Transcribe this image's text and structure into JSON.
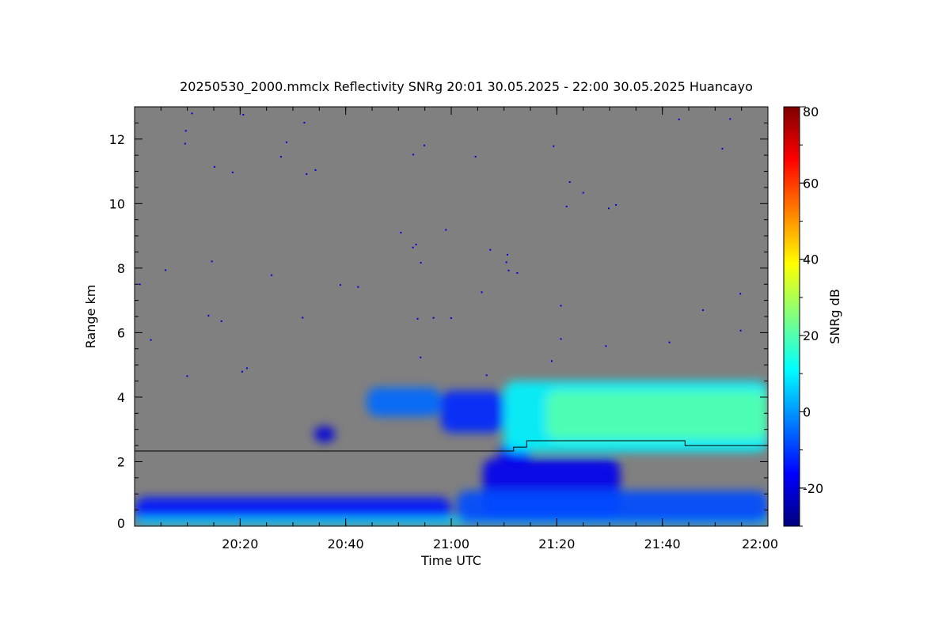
{
  "chart_data": {
    "type": "heatmap",
    "title": "20250530_2000.mmclx Reflectivity SNRg   20:01 30.05.2025 - 22:00 30.05.2025 Huancayo",
    "xlabel": "Time UTC",
    "ylabel": "Range km",
    "colorbar_label": "SNRg dB",
    "x_range_minutes": [
      0,
      120
    ],
    "x_ticks": [
      {
        "t": 20,
        "label": "20:20"
      },
      {
        "t": 40,
        "label": "20:40"
      },
      {
        "t": 60,
        "label": "21:00"
      },
      {
        "t": 80,
        "label": "21:20"
      },
      {
        "t": 100,
        "label": "21:40"
      },
      {
        "t": 120,
        "label": "22:00"
      }
    ],
    "y_range": [
      0,
      13
    ],
    "y_ticks": [
      {
        "v": 0,
        "label": "0"
      },
      {
        "v": 2,
        "label": "2"
      },
      {
        "v": 4,
        "label": "4"
      },
      {
        "v": 6,
        "label": "6"
      },
      {
        "v": 8,
        "label": "8"
      },
      {
        "v": 10,
        "label": "10"
      },
      {
        "v": 12,
        "label": "12"
      }
    ],
    "colorbar_range": [
      -30,
      80
    ],
    "colorbar_ticks": [
      {
        "v": -20,
        "label": "-20"
      },
      {
        "v": 0,
        "label": "0"
      },
      {
        "v": 20,
        "label": "20"
      },
      {
        "v": 40,
        "label": "40"
      },
      {
        "v": 60,
        "label": "60"
      },
      {
        "v": 80,
        "label": "80"
      }
    ],
    "colormap": [
      "#00007f",
      "#0000ff",
      "#0080ff",
      "#00ffff",
      "#80ff80",
      "#ffff00",
      "#ff8000",
      "#ff0000",
      "#7f0000"
    ],
    "background_color": "#808080",
    "cloud_top_line": [
      {
        "t": 0,
        "v": 2.33
      },
      {
        "t": 71.8,
        "v": 2.33
      },
      {
        "t": 71.8,
        "v": 2.45
      },
      {
        "t": 74.3,
        "v": 2.45
      },
      {
        "t": 74.3,
        "v": 2.65
      },
      {
        "t": 104.3,
        "v": 2.65
      },
      {
        "t": 104.3,
        "v": 2.5
      },
      {
        "t": 120,
        "v": 2.5
      }
    ],
    "echo_regions": [
      {
        "t0": 0,
        "t1": 60,
        "v0": 0.1,
        "v1": 0.9,
        "snr": -14
      },
      {
        "t0": 0,
        "t1": 120,
        "v0": 0.05,
        "v1": 0.25,
        "snr": 8
      },
      {
        "t0": 44,
        "t1": 58,
        "v0": 3.4,
        "v1": 4.3,
        "snr": -5
      },
      {
        "t0": 58,
        "t1": 70,
        "v0": 2.9,
        "v1": 4.2,
        "snr": -12
      },
      {
        "t0": 69,
        "t1": 75,
        "v0": 2.0,
        "v1": 2.6,
        "snr": -16
      },
      {
        "t0": 70,
        "t1": 120,
        "v0": 2.3,
        "v1": 4.5,
        "snr": 10
      },
      {
        "t0": 78,
        "t1": 120,
        "v0": 2.7,
        "v1": 4.2,
        "snr": 20
      },
      {
        "t0": 66,
        "t1": 92,
        "v0": 0.3,
        "v1": 2.1,
        "snr": -18
      },
      {
        "t0": 61,
        "t1": 120,
        "v0": 0.1,
        "v1": 1.1,
        "snr": -8
      },
      {
        "t0": 34,
        "t1": 38,
        "v0": 2.6,
        "v1": 3.1,
        "snr": -20
      }
    ]
  }
}
